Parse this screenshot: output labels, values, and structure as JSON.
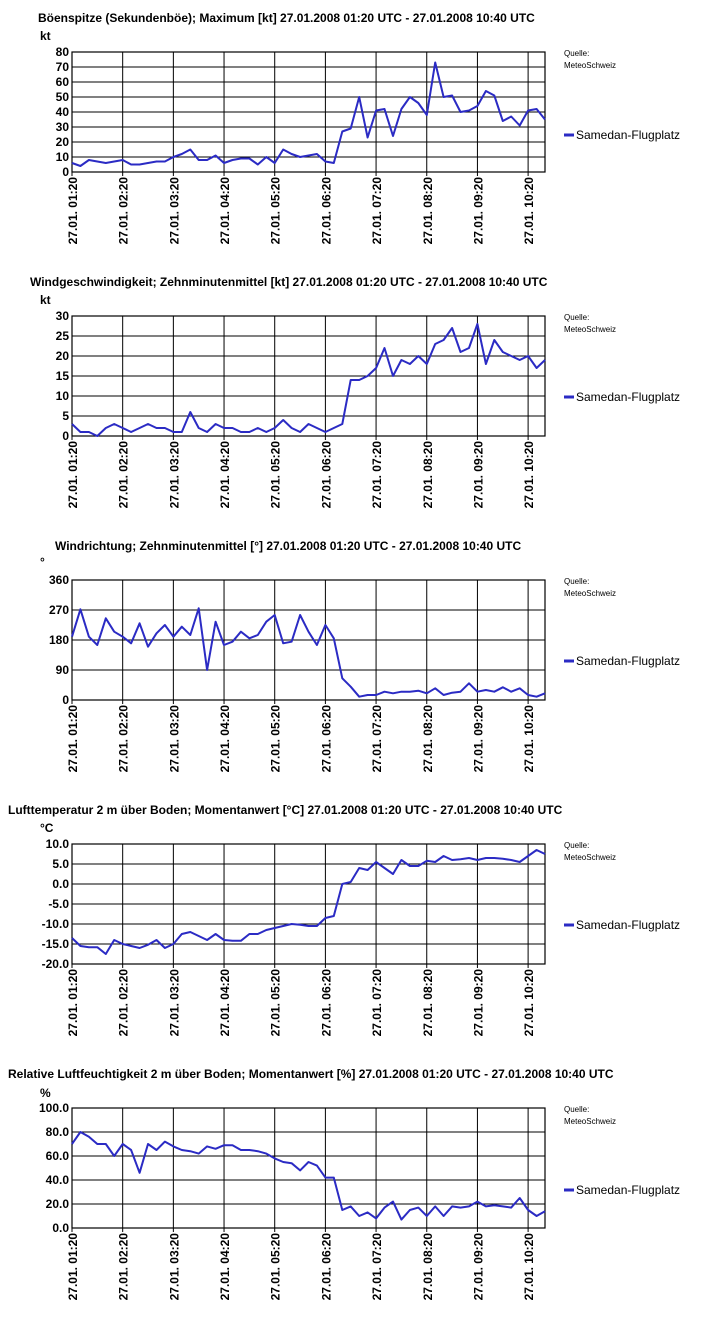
{
  "source_label_line1": "Quelle:",
  "source_label_line2": "MeteoSchweiz",
  "colors": {
    "series": "#2b2bc4",
    "grid": "#000000",
    "axis": "#000000"
  },
  "x_ticks": [
    "27.01. 01:20",
    "27.01. 02:20",
    "27.01. 03:20",
    "27.01. 04:20",
    "27.01. 05:20",
    "27.01. 06:20",
    "27.01. 07:20",
    "27.01. 08:20",
    "27.01. 09:20",
    "27.01. 10:20"
  ],
  "chart_data": [
    {
      "type": "line",
      "title": "Böenspitze (Sekundenböe); Maximum [kt] 27.01.2008 01:20 UTC - 27.01.2008 10:40 UTC",
      "ylabel": "kt",
      "ylim": [
        0,
        80
      ],
      "yticks": [
        "0",
        "10",
        "20",
        "30",
        "40",
        "50",
        "60",
        "70",
        "80"
      ],
      "x_start": "27.01.2008 01:20",
      "x_end": "27.01.2008 10:40",
      "interval_minutes": 10,
      "series": [
        {
          "name": "Samedan-Flugplatz",
          "values": [
            6,
            4,
            8,
            7,
            6,
            7,
            8,
            5,
            5,
            6,
            7,
            7,
            10,
            12,
            15,
            8,
            8,
            11,
            6,
            8,
            9,
            9,
            5,
            10,
            6,
            15,
            12,
            10,
            11,
            12,
            7,
            6,
            27,
            29,
            50,
            23,
            41,
            42,
            24,
            42,
            50,
            46,
            38,
            73,
            50,
            51,
            40,
            41,
            44,
            54,
            51,
            34,
            37,
            31,
            41,
            42,
            35
          ]
        }
      ]
    },
    {
      "type": "line",
      "title": "Windgeschwindigkeit; Zehnminutenmittel [kt] 27.01.2008 01:20 UTC - 27.01.2008 10:40 UTC",
      "ylabel": "kt",
      "ylim": [
        0,
        30
      ],
      "yticks": [
        "0",
        "5",
        "10",
        "15",
        "20",
        "25",
        "30"
      ],
      "x_start": "27.01.2008 01:20",
      "x_end": "27.01.2008 10:40",
      "interval_minutes": 10,
      "series": [
        {
          "name": "Samedan-Flugplatz",
          "values": [
            3,
            1,
            1,
            0,
            2,
            3,
            2,
            1,
            2,
            3,
            2,
            2,
            1,
            1,
            6,
            2,
            1,
            3,
            2,
            2,
            1,
            1,
            2,
            1,
            2,
            4,
            2,
            1,
            3,
            2,
            1,
            2,
            3,
            14,
            14,
            15,
            17,
            22,
            15,
            19,
            18,
            20,
            18,
            23,
            24,
            27,
            21,
            22,
            28,
            18,
            24,
            21,
            20,
            19,
            20,
            17,
            19
          ]
        }
      ]
    },
    {
      "type": "line",
      "title": "Windrichtung; Zehnminutenmittel [°] 27.01.2008 01:20 UTC - 27.01.2008 10:40 UTC",
      "ylabel": "°",
      "ylim": [
        0,
        360
      ],
      "yticks": [
        "0",
        "90",
        "180",
        "270",
        "360"
      ],
      "x_start": "27.01.2008 01:20",
      "x_end": "27.01.2008 10:40",
      "interval_minutes": 10,
      "series": [
        {
          "name": "Samedan-Flugplatz",
          "values": [
            190,
            272,
            190,
            165,
            245,
            205,
            190,
            170,
            230,
            160,
            200,
            225,
            190,
            220,
            195,
            275,
            90,
            235,
            165,
            175,
            205,
            185,
            195,
            235,
            255,
            170,
            175,
            255,
            205,
            165,
            225,
            185,
            65,
            40,
            10,
            15,
            15,
            25,
            20,
            25,
            25,
            28,
            20,
            35,
            15,
            22,
            25,
            50,
            25,
            30,
            25,
            38,
            25,
            35,
            15,
            10,
            20
          ]
        }
      ]
    },
    {
      "type": "line",
      "title": "Lufttemperatur 2 m über Boden; Momentanwert [°C] 27.01.2008 01:20 UTC - 27.01.2008 10:40 UTC",
      "ylabel": "°C",
      "ylim": [
        -20,
        10
      ],
      "yticks": [
        "-20.0",
        "-15.0",
        "-10.0",
        "-5.0",
        "0.0",
        "5.0",
        "10.0"
      ],
      "x_start": "27.01.2008 01:20",
      "x_end": "27.01.2008 10:40",
      "interval_minutes": 10,
      "series": [
        {
          "name": "Samedan-Flugplatz",
          "values": [
            -13.5,
            -15.5,
            -15.8,
            -15.8,
            -17.5,
            -14.0,
            -15.0,
            -15.5,
            -16.0,
            -15.2,
            -14.0,
            -16.0,
            -15.0,
            -12.5,
            -12.0,
            -13.0,
            -14.0,
            -12.5,
            -14.0,
            -14.2,
            -14.2,
            -12.5,
            -12.5,
            -11.5,
            -11.0,
            -10.5,
            -10.0,
            -10.2,
            -10.5,
            -10.5,
            -8.5,
            -8.0,
            0.0,
            0.5,
            4.0,
            3.5,
            5.5,
            4.0,
            2.5,
            6.0,
            4.5,
            4.5,
            5.8,
            5.5,
            7.0,
            6.0,
            6.2,
            6.5,
            6.0,
            6.5,
            6.5,
            6.3,
            6.0,
            5.5,
            7.0,
            8.5,
            7.5
          ]
        }
      ]
    },
    {
      "type": "line",
      "title": "Relative Luftfeuchtigkeit 2 m über Boden; Momentanwert [%] 27.01.2008 01:20 UTC - 27.01.2008 10:40 UTC",
      "ylabel": "%",
      "ylim": [
        0,
        100
      ],
      "yticks": [
        "0.0",
        "20.0",
        "40.0",
        "60.0",
        "80.0",
        "100.0"
      ],
      "x_start": "27.01.2008 01:20",
      "x_end": "27.01.2008 10:40",
      "interval_minutes": 10,
      "series": [
        {
          "name": "Samedan-Flugplatz",
          "values": [
            70,
            80,
            76,
            70,
            70,
            60,
            70,
            65,
            46,
            70,
            65,
            72,
            68,
            65,
            64,
            62,
            68,
            66,
            69,
            69,
            65,
            65,
            64,
            62,
            58,
            55,
            54,
            48,
            55,
            52,
            42,
            42,
            15,
            18,
            10,
            13,
            8,
            17,
            22,
            7,
            15,
            17,
            10,
            18,
            10,
            18,
            17,
            18,
            22,
            18,
            19,
            18,
            17,
            25,
            15,
            10,
            14
          ]
        }
      ]
    }
  ]
}
